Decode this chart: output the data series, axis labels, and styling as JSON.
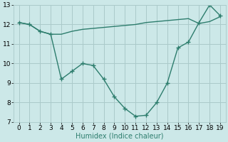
{
  "line1_x": [
    0,
    1,
    2,
    3,
    4,
    5,
    6,
    7,
    8,
    9,
    10,
    11,
    12,
    13,
    14,
    15,
    16,
    17,
    18,
    19
  ],
  "line1_y": [
    12.1,
    12.0,
    11.65,
    11.5,
    11.5,
    11.65,
    11.75,
    11.8,
    11.85,
    11.9,
    11.95,
    12.0,
    12.1,
    12.15,
    12.2,
    12.25,
    12.3,
    12.05,
    12.15,
    12.4
  ],
  "line2_x": [
    0,
    1,
    2,
    3,
    4,
    5,
    6,
    7,
    8,
    9,
    10,
    11,
    12,
    13,
    14,
    15,
    16,
    17,
    18,
    19
  ],
  "line2_y": [
    12.1,
    12.0,
    11.65,
    11.5,
    9.2,
    9.6,
    10.0,
    9.9,
    9.2,
    8.3,
    7.7,
    7.3,
    7.35,
    8.0,
    9.0,
    10.8,
    11.1,
    12.1,
    13.0,
    12.45
  ],
  "line_color": "#2d7d6d",
  "bg_color": "#cce8e8",
  "grid_color": "#aacaca",
  "xlabel": "Humidex (Indice chaleur)",
  "xlim": [
    -0.5,
    19.5
  ],
  "ylim": [
    7,
    13
  ],
  "yticks": [
    7,
    8,
    9,
    10,
    11,
    12,
    13
  ],
  "xticks": [
    0,
    1,
    2,
    3,
    4,
    5,
    6,
    7,
    8,
    9,
    10,
    11,
    12,
    13,
    14,
    15,
    16,
    17,
    18,
    19
  ],
  "marker2": "+",
  "markersize2": 4,
  "linewidth": 1.0,
  "xlabel_fontsize": 7,
  "tick_fontsize": 6.5
}
